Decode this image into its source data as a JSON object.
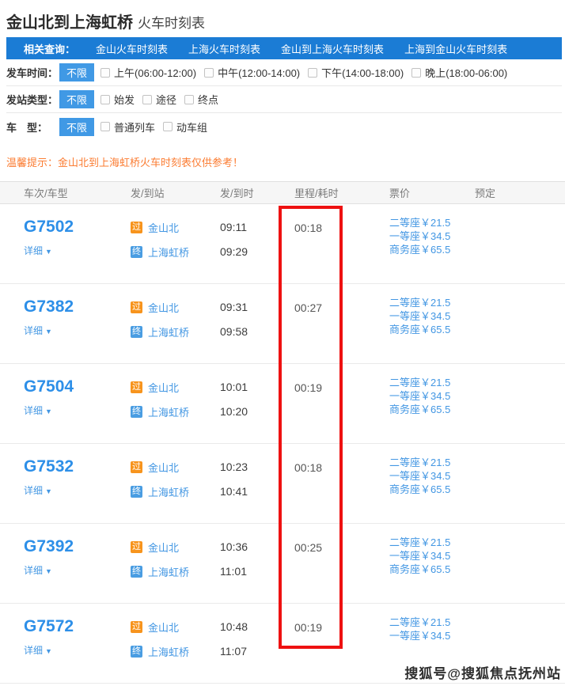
{
  "page": {
    "title_main": "金山北到上海虹桥",
    "title_sub": "火车时刻表"
  },
  "related": {
    "label": "相关查询：",
    "links": [
      "金山火车时刻表",
      "上海火车时刻表",
      "金山到上海火车时刻表",
      "上海到金山火车时刻表"
    ]
  },
  "filters": [
    {
      "label": "发车时间：",
      "selected": "不限",
      "options": [
        "上午(06:00-12:00)",
        "中午(12:00-14:00)",
        "下午(14:00-18:00)",
        "晚上(18:00-06:00)"
      ]
    },
    {
      "label": "发站类型：",
      "selected": "不限",
      "options": [
        "始发",
        "途径",
        "终点"
      ]
    },
    {
      "label": "车　型：",
      "selected": "不限",
      "options": [
        "普通列车",
        "动车组"
      ]
    }
  ],
  "tip": "温馨提示：金山北到上海虹桥火车时刻表仅供参考！",
  "table": {
    "headers": [
      "车次/车型",
      "发/到站",
      "发/到时",
      "里程/耗时",
      "票价",
      "预定"
    ],
    "detail_label": "详细",
    "rows": [
      {
        "train": "G7502",
        "from_badge": "过",
        "from": "金山北",
        "dep": "09:11",
        "to_badge": "终",
        "to": "上海虹桥",
        "arr": "09:29",
        "duration": "00:18",
        "prices": [
          "二等座￥21.5",
          "一等座￥34.5",
          "商务座￥65.5"
        ]
      },
      {
        "train": "G7382",
        "from_badge": "过",
        "from": "金山北",
        "dep": "09:31",
        "to_badge": "终",
        "to": "上海虹桥",
        "arr": "09:58",
        "duration": "00:27",
        "prices": [
          "二等座￥21.5",
          "一等座￥34.5",
          "商务座￥65.5"
        ]
      },
      {
        "train": "G7504",
        "from_badge": "过",
        "from": "金山北",
        "dep": "10:01",
        "to_badge": "终",
        "to": "上海虹桥",
        "arr": "10:20",
        "duration": "00:19",
        "prices": [
          "二等座￥21.5",
          "一等座￥34.5",
          "商务座￥65.5"
        ]
      },
      {
        "train": "G7532",
        "from_badge": "过",
        "from": "金山北",
        "dep": "10:23",
        "to_badge": "终",
        "to": "上海虹桥",
        "arr": "10:41",
        "duration": "00:18",
        "prices": [
          "二等座￥21.5",
          "一等座￥34.5",
          "商务座￥65.5"
        ]
      },
      {
        "train": "G7392",
        "from_badge": "过",
        "from": "金山北",
        "dep": "10:36",
        "to_badge": "终",
        "to": "上海虹桥",
        "arr": "11:01",
        "duration": "00:25",
        "prices": [
          "二等座￥21.5",
          "一等座￥34.5",
          "商务座￥65.5"
        ]
      },
      {
        "train": "G7572",
        "from_badge": "过",
        "from": "金山北",
        "dep": "10:48",
        "to_badge": "终",
        "to": "上海虹桥",
        "arr": "11:07",
        "duration": "00:19",
        "prices": [
          "二等座￥21.5",
          "一等座￥34.5"
        ]
      }
    ]
  },
  "icons": {
    "caret_down": "▼"
  },
  "watermark": "搜狐号@搜狐焦点抚州站",
  "colors": {
    "bar_blue": "#1b7cd5",
    "selected_blue": "#4099e5",
    "train_blue": "#2d8fe8",
    "link_blue": "#4397e3",
    "pass_badge_orange": "#f7941d",
    "terminal_badge_blue": "#4a9de2",
    "tip_orange": "#fb7c32",
    "highlight_red": "#ee1111"
  }
}
